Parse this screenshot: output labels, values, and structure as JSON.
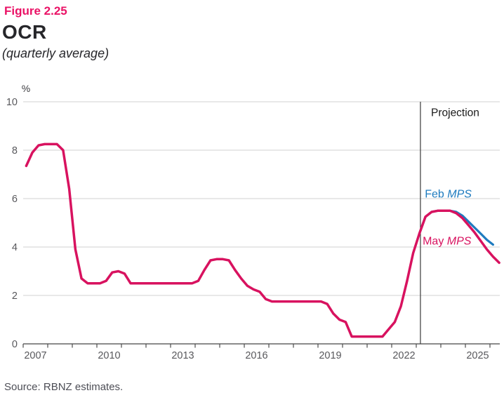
{
  "header": {
    "figure_label": "Figure 2.25",
    "title": "OCR",
    "subtitle": "(quarterly average)"
  },
  "footer": {
    "source": "Source: RBNZ estimates."
  },
  "chart_data": {
    "type": "line",
    "title": "OCR (quarterly average)",
    "unit_label": "%",
    "ylabel": "%",
    "xlabel": "",
    "ylim": [
      0,
      10
    ],
    "y_ticks": [
      0,
      2,
      4,
      6,
      8,
      10
    ],
    "x_range": [
      2007,
      2026.4
    ],
    "x_minor_tick_years": [
      2007,
      2008,
      2009,
      2010,
      2011,
      2012,
      2013,
      2014,
      2015,
      2016,
      2017,
      2018,
      2019,
      2020,
      2021,
      2022,
      2023,
      2024,
      2025,
      2026
    ],
    "x_tick_labels": [
      2007,
      2010,
      2013,
      2016,
      2019,
      2022,
      2025
    ],
    "grid": "horizontal",
    "legend_position": "inline-labels",
    "projection_divider_year": 2023.17,
    "annotations": {
      "projection": {
        "text": "Projection",
        "x_year": 2023.6,
        "y_value": 9.4
      }
    },
    "colors": {
      "grid": "#DBDBDB",
      "axis": "#8A8A8A",
      "axis_tick": "#4C4C4C",
      "divider": "#3A3A3A",
      "tick_label": "#58585C",
      "annotation": "#1A1A1A"
    },
    "frequency": "quarterly",
    "series": [
      {
        "name": "Feb MPS",
        "color": "#1E7BBF",
        "stroke_width": 3.2,
        "start_year": 2023,
        "start_quarter": 1,
        "values": [
          4.55,
          5.25,
          5.45,
          5.5,
          5.5,
          5.5,
          5.45,
          5.3,
          5.05,
          4.8,
          4.55,
          4.3,
          4.1
        ],
        "label_anchor": {
          "x_year": 2023.35,
          "y_value": 6.05
        }
      },
      {
        "name": "May MPS",
        "color": "#D8125F",
        "stroke_width": 3.5,
        "start_year": 2007,
        "start_quarter": 1,
        "values": [
          7.35,
          7.9,
          8.2,
          8.25,
          8.25,
          8.25,
          8.0,
          6.4,
          3.9,
          2.7,
          2.5,
          2.5,
          2.5,
          2.6,
          2.95,
          3.0,
          2.9,
          2.5,
          2.5,
          2.5,
          2.5,
          2.5,
          2.5,
          2.5,
          2.5,
          2.5,
          2.5,
          2.5,
          2.6,
          3.05,
          3.45,
          3.5,
          3.5,
          3.45,
          3.05,
          2.7,
          2.4,
          2.25,
          2.15,
          1.85,
          1.75,
          1.75,
          1.75,
          1.75,
          1.75,
          1.75,
          1.75,
          1.75,
          1.75,
          1.65,
          1.25,
          1.0,
          0.9,
          0.3,
          0.3,
          0.3,
          0.3,
          0.3,
          0.3,
          0.6,
          0.9,
          1.55,
          2.6,
          3.75,
          4.55,
          5.25,
          5.45,
          5.5,
          5.5,
          5.5,
          5.4,
          5.2,
          4.9,
          4.6,
          4.25,
          3.9,
          3.6,
          3.35
        ],
        "label_anchor": {
          "x_year": 2023.26,
          "y_value": 4.1
        }
      }
    ]
  }
}
